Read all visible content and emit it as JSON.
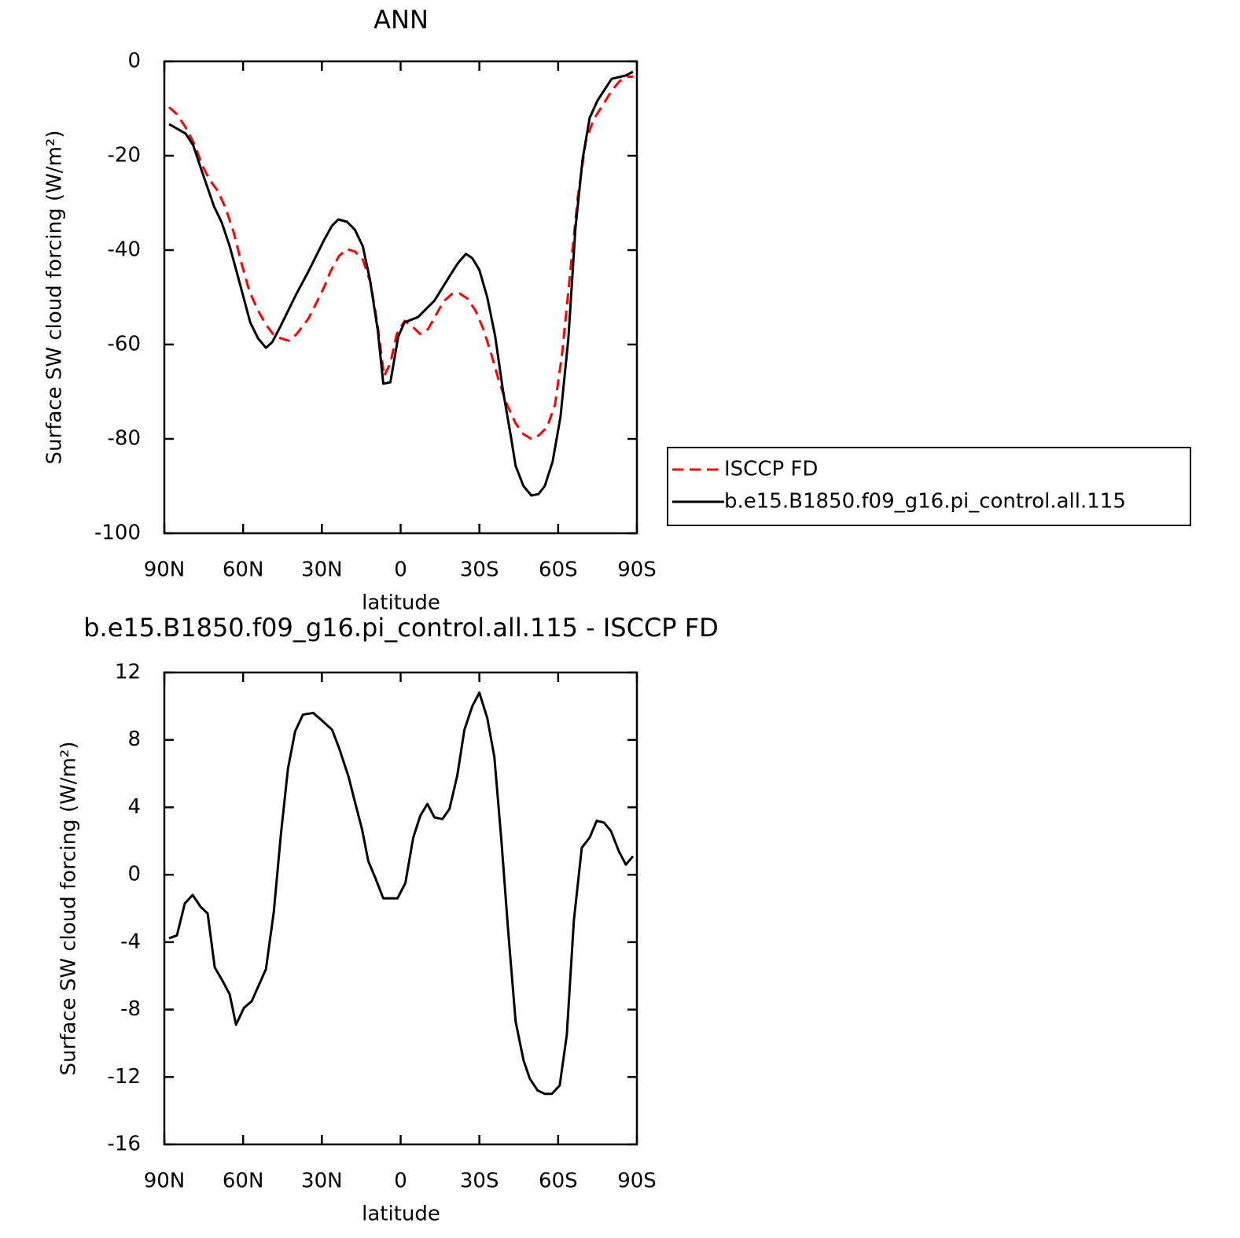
{
  "chart_data": [
    {
      "type": "line",
      "title": "ANN",
      "xlabel": "latitude",
      "ylabel": "Surface SW cloud forcing (W/m²)",
      "xlim": [
        90,
        -90
      ],
      "xticks": [
        {
          "value": 90,
          "label": "90N"
        },
        {
          "value": 60,
          "label": "60N"
        },
        {
          "value": 30,
          "label": "30N"
        },
        0,
        {
          "value": -30,
          "label": "30S"
        },
        {
          "value": -60,
          "label": "60S"
        },
        {
          "value": -90,
          "label": "90S"
        }
      ],
      "ylim": [
        -100,
        0
      ],
      "yticks": [
        0,
        -20,
        -40,
        -60,
        -80,
        -100
      ],
      "legend": "right",
      "series": [
        {
          "name": "ISCCP FD",
          "color": "#ff0000",
          "dash": true,
          "x": [
            88.2,
            85.2,
            81.9,
            78.6,
            75.6,
            72.9,
            69.6,
            66.6,
            63.6,
            60.6,
            57.6,
            54.6,
            51.3,
            48.6,
            45.6,
            42.6,
            39.6,
            35.1,
            32.1,
            29.1,
            26.7,
            23.4,
            20.4,
            17.4,
            14.4,
            11.4,
            8.7,
            6.3,
            3.9,
            1.5,
            -1.5,
            -4.5,
            -7.5,
            -10.5,
            -13.5,
            -16.5,
            -19.5,
            -22.5,
            -25.5,
            -28.5,
            -31.5,
            -34.5,
            -37.5,
            -40.5,
            -43.8,
            -46.8,
            -49.8,
            -52.8,
            -55.8,
            -58.8,
            -61.5,
            -64.5,
            -67.5,
            -70.5,
            -73.5,
            -77.1,
            -80.4,
            -83.4,
            -86.4,
            -88.5
          ],
          "values": [
            -9.7,
            -11.2,
            -14,
            -17.5,
            -22,
            -25,
            -27.5,
            -31.2,
            -36.2,
            -42.8,
            -48.7,
            -52.5,
            -55.8,
            -57.8,
            -58.7,
            -59.2,
            -57.8,
            -54.5,
            -51.2,
            -47.8,
            -44.5,
            -41.2,
            -39.8,
            -40.3,
            -42,
            -47,
            -56.2,
            -66.7,
            -64,
            -57.8,
            -55,
            -56.2,
            -57.8,
            -56.7,
            -53.7,
            -50.8,
            -49.3,
            -49.2,
            -50.3,
            -52.8,
            -56.7,
            -62,
            -67.8,
            -72.7,
            -76.7,
            -79,
            -80,
            -79.2,
            -77.5,
            -72.8,
            -62,
            -45.3,
            -28.7,
            -17,
            -12.3,
            -9.2,
            -6.2,
            -4.2,
            -3.3,
            -3.2
          ]
        },
        {
          "name": "b.e15.B1850.f09_g16.pi_control.all.115",
          "color": "#000000",
          "dash": false,
          "x": [
            88.2,
            81.9,
            79,
            76,
            71.1,
            68.1,
            65.1,
            62.1,
            57.3,
            54.3,
            51.3,
            48.9,
            45.9,
            39.9,
            35.1,
            29.1,
            26.1,
            23.7,
            20.4,
            17.4,
            14.4,
            11.7,
            8.7,
            6.6,
            3.9,
            0.9,
            -1.5,
            -6.6,
            -12.9,
            -18.9,
            -21.9,
            -24.9,
            -27.3,
            -30,
            -33,
            -36,
            -39,
            -42,
            -43.8,
            -46.8,
            -49.8,
            -52.5,
            -54.9,
            -57.9,
            -60.9,
            -63.9,
            -66.6,
            -69.3,
            -72,
            -75,
            -80.4,
            -85.8,
            -88.5
          ],
          "values": [
            -13.3,
            -15.3,
            -17.8,
            -22.8,
            -30.7,
            -34.2,
            -39.2,
            -45.3,
            -55.3,
            -58.7,
            -60.7,
            -59.5,
            -56.3,
            -49.5,
            -44.5,
            -37.8,
            -34.8,
            -33.5,
            -34,
            -35.7,
            -39.2,
            -46.2,
            -57,
            -68.3,
            -68,
            -58.3,
            -55.3,
            -54.2,
            -50.7,
            -45.3,
            -42.7,
            -40.8,
            -41.7,
            -44.2,
            -50,
            -58.2,
            -69.8,
            -79.5,
            -85.7,
            -90,
            -92,
            -91.7,
            -90,
            -84.8,
            -75.3,
            -58.7,
            -35.3,
            -20.8,
            -12,
            -8.3,
            -3.7,
            -3,
            -2.2
          ]
        }
      ]
    },
    {
      "type": "line",
      "title": "b.e15.B1850.f09_g16.pi_control.all.115 - ISCCP FD",
      "xlabel": "latitude",
      "ylabel": "Surface SW cloud forcing (W/m²)",
      "xlim": [
        90,
        -90
      ],
      "xticks": [
        {
          "value": 90,
          "label": "90N"
        },
        {
          "value": 60,
          "label": "60N"
        },
        {
          "value": 30,
          "label": "30N"
        },
        0,
        {
          "value": -30,
          "label": "30S"
        },
        {
          "value": -60,
          "label": "60S"
        },
        {
          "value": -90,
          "label": "90S"
        }
      ],
      "ylim": [
        -16,
        12
      ],
      "yticks": [
        12,
        8,
        4,
        0,
        -4,
        -8,
        -12,
        -16
      ],
      "series": [
        {
          "color": "#000000",
          "dash": false,
          "x": [
            88.2,
            85.2,
            82.2,
            79.2,
            76.2,
            73.5,
            70.8,
            67.8,
            65.1,
            62.7,
            59.7,
            56.7,
            51.3,
            48.3,
            45.6,
            42.9,
            40.2,
            37.2,
            33.3,
            30.3,
            26.1,
            23.4,
            19.8,
            17.7,
            14.7,
            12.3,
            9.6,
            6.6,
            1.2,
            -1.8,
            -4.8,
            -7.5,
            -10.2,
            -12.9,
            -15.9,
            -18.6,
            -21.6,
            -24.3,
            -27.3,
            -30,
            -33,
            -35.7,
            -38.4,
            -41.1,
            -43.8,
            -46.8,
            -49.2,
            -52.2,
            -54.9,
            -57.6,
            -60.6,
            -63.3,
            -66,
            -69,
            -72,
            -74.7,
            -77.4,
            -80.1,
            -83.1,
            -85.8,
            -88.5
          ],
          "values": [
            -3.77,
            -3.6,
            -1.7,
            -1.2,
            -1.9,
            -2.3,
            -5.5,
            -6.3,
            -7.1,
            -8.9,
            -7.9,
            -7.5,
            -5.6,
            -2.2,
            2.4,
            6.3,
            8.5,
            9.5,
            9.6,
            9.2,
            8.6,
            7.5,
            5.8,
            4.5,
            2.7,
            0.8,
            -0.2,
            -1.4,
            -1.4,
            -0.5,
            2.2,
            3.5,
            4.2,
            3.4,
            3.3,
            3.9,
            5.9,
            8.6,
            10,
            10.8,
            9.3,
            7,
            2,
            -3.6,
            -8.7,
            -11,
            -12.1,
            -12.8,
            -13,
            -13,
            -12.5,
            -9.5,
            -2.7,
            1.6,
            2.2,
            3.2,
            3.1,
            2.6,
            1.4,
            0.6,
            1.1
          ]
        }
      ]
    }
  ]
}
